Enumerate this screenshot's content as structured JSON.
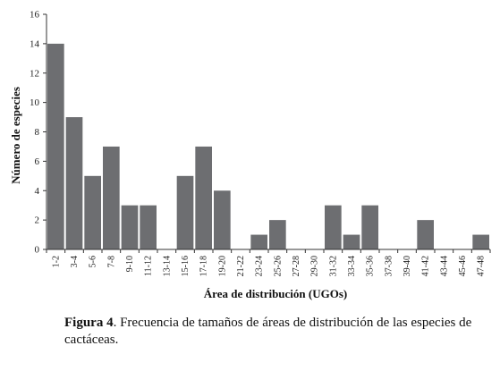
{
  "caption": {
    "label": "Figura 4",
    "text": ". Frecuencia de tamaños de áreas de distribución de las especies de cactáceas."
  },
  "chart_data": {
    "type": "bar",
    "xlabel": "Área de distribución (UGOs)",
    "ylabel": "Número de especies",
    "ylim": [
      0,
      16
    ],
    "yticks": [
      0,
      2,
      4,
      6,
      8,
      10,
      12,
      14,
      16
    ],
    "grid": false,
    "categories": [
      "1-2",
      "3-4",
      "5-6",
      "7-8",
      "9-10",
      "11-12",
      "13-14",
      "15-16",
      "17-18",
      "19-20",
      "21-22",
      "23-24",
      "25-26",
      "27-28",
      "29-30",
      "31-32",
      "33-34",
      "35-36",
      "37-38",
      "39-40",
      "41-42",
      "43-44",
      "45-46",
      "47-48"
    ],
    "values": [
      14,
      9,
      5,
      7,
      3,
      3,
      0,
      5,
      7,
      4,
      0,
      1,
      2,
      0,
      0,
      3,
      1,
      3,
      0,
      0,
      2,
      0,
      0,
      1
    ],
    "bar_color": "#6d6e71",
    "axis_color": "#333333"
  }
}
